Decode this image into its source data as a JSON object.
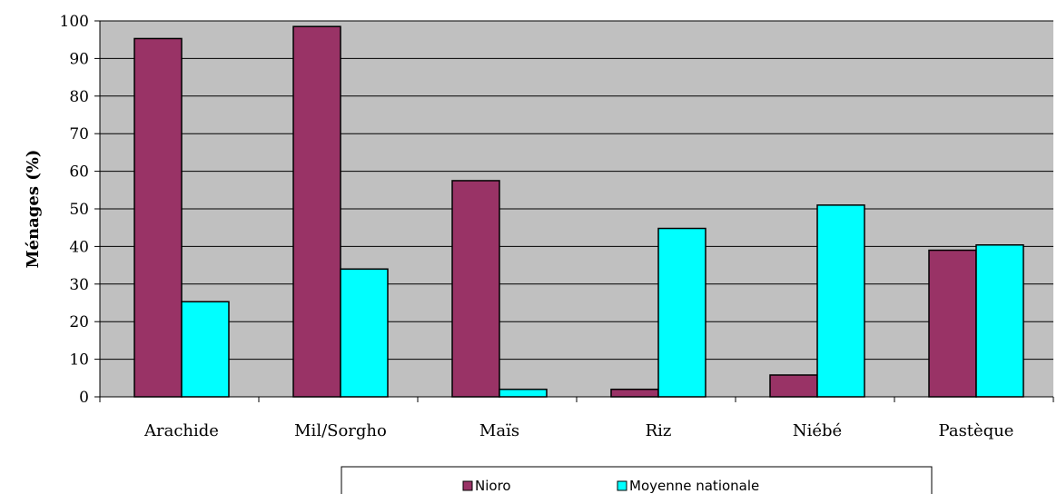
{
  "chart_data": {
    "type": "bar",
    "ylabel": "Ménages (%)",
    "xlabel": "",
    "ylim": [
      0,
      100
    ],
    "yticks": [
      0,
      10,
      20,
      30,
      40,
      50,
      60,
      70,
      80,
      90,
      100
    ],
    "grid": true,
    "legend_position": "bottom",
    "plot_background": "#c0c0c0",
    "categories": [
      "Arachide",
      "Mil/Sorgho",
      "Maïs",
      "Riz",
      "Niébé",
      "Pastèque"
    ],
    "series": [
      {
        "name": "Nioro",
        "color": "#993366",
        "values": [
          95.3,
          98.5,
          57.5,
          2.0,
          5.8,
          39.0
        ]
      },
      {
        "name": "Moyenne nationale",
        "color": "#00ffff",
        "values": [
          25.3,
          34.0,
          2.0,
          44.8,
          51.0,
          40.4
        ]
      }
    ]
  }
}
